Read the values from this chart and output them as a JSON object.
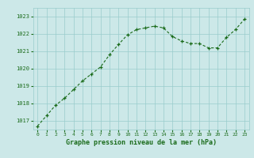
{
  "x": [
    0,
    1,
    2,
    3,
    4,
    5,
    6,
    7,
    8,
    9,
    10,
    11,
    12,
    13,
    14,
    15,
    16,
    17,
    18,
    19,
    20,
    21,
    22,
    23
  ],
  "y": [
    1016.7,
    1017.3,
    1017.9,
    1018.3,
    1018.8,
    1019.3,
    1019.7,
    1020.1,
    1020.8,
    1021.4,
    1021.95,
    1022.25,
    1022.35,
    1022.45,
    1022.35,
    1021.85,
    1021.6,
    1021.45,
    1021.45,
    1021.2,
    1021.2,
    1021.8,
    1022.25,
    1022.85
  ],
  "ylim": [
    1016.5,
    1023.5
  ],
  "yticks": [
    1017,
    1018,
    1019,
    1020,
    1021,
    1022,
    1023
  ],
  "xticks": [
    0,
    1,
    2,
    3,
    4,
    5,
    6,
    7,
    8,
    9,
    10,
    11,
    12,
    13,
    14,
    15,
    16,
    17,
    18,
    19,
    20,
    21,
    22,
    23
  ],
  "line_color": "#1a6b1a",
  "marker": "+",
  "bg_color": "#cce8e8",
  "grid_color": "#99cccc",
  "xlabel": "Graphe pression niveau de la mer (hPa)",
  "xlabel_color": "#1a6b1a",
  "tick_color": "#1a6b1a"
}
